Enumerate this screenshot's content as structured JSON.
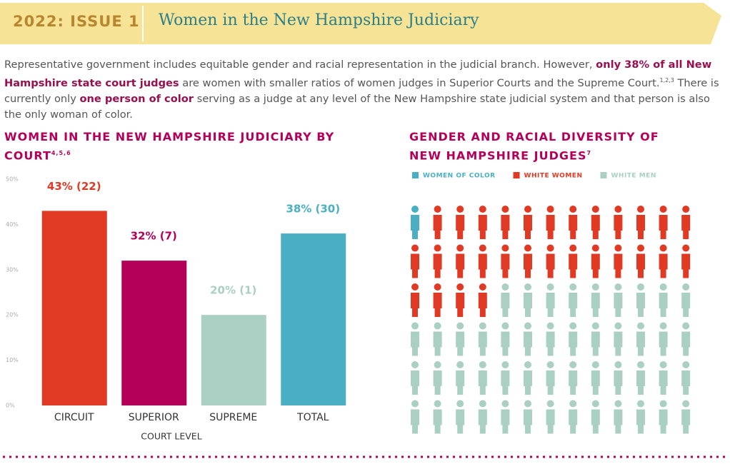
{
  "header": {
    "issue": "2022: ISSUE 1",
    "title": "Women in the New Hampshire Judiciary"
  },
  "intro": [
    {
      "text": "Representative government includes equitable gender and racial representation in the judicial branch. However, ",
      "style": "normal"
    },
    {
      "text": "only 38% of all New Hampshire state court judges",
      "style": "bold"
    },
    {
      "text": " are women with smaller ratios of women judges in Superior Courts and the Supreme Court.",
      "style": "normal"
    },
    {
      "text": "1,2,3",
      "style": "sup"
    },
    {
      "text": " There is currently only ",
      "style": "normal"
    },
    {
      "text": "one person of color",
      "style": "bold"
    },
    {
      "text": " serving as a judge at any level of the New Hampshire state judicial system and that person is also the only woman of color.",
      "style": "normal"
    }
  ],
  "chart_data": [
    {
      "type": "bar",
      "title": "WOMEN IN THE NEW HAMPSHIRE JUDICIARY BY COURT",
      "title_note": "4,5,6",
      "x_label": "COURT LEVEL",
      "categories": [
        "CIRCUIT",
        "SUPERIOR",
        "SUPREME",
        "TOTAL"
      ],
      "values": [
        43,
        32,
        20,
        38
      ],
      "value_labels": [
        "43% (22)",
        "32% (7)",
        "20% (1)",
        "38% (30)"
      ],
      "colors": [
        "#e03a24",
        "#b5005a",
        "#a9d0c2",
        "#4aafc3"
      ],
      "ylim": [
        0,
        50
      ],
      "yticks": [
        {
          "value": 0,
          "label": "0%"
        },
        {
          "value": 10,
          "label": "10%"
        },
        {
          "value": 20,
          "label": "20%"
        },
        {
          "value": 30,
          "label": "30%"
        },
        {
          "value": 40,
          "label": "40%"
        },
        {
          "value": 50,
          "label": "50%"
        }
      ]
    },
    {
      "type": "pictogram",
      "title": "GENDER AND RACIAL DIVERSITY OF NEW HAMPSHIRE JUDGES",
      "title_note": "7",
      "series": [
        {
          "name": "WOMEN OF COLOR",
          "color": "#4aafc3",
          "values": [
            1
          ]
        },
        {
          "name": "WHITE WOMEN",
          "color": "#e03a24",
          "values": [
            29
          ]
        },
        {
          "name": "WHITE MEN",
          "color": "#a9d0c2",
          "values": [
            48
          ]
        }
      ]
    }
  ]
}
